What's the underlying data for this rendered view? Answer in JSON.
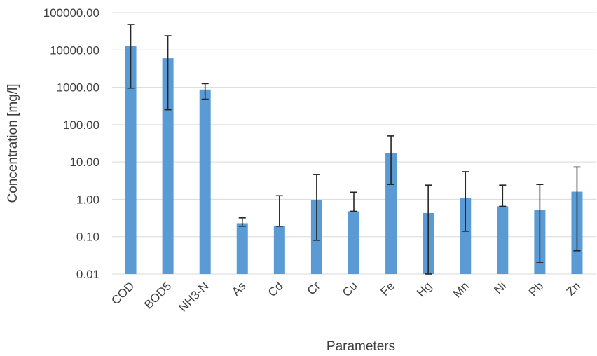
{
  "chart_data": {
    "type": "bar",
    "yscale": "log",
    "ylim": [
      0.01,
      100000
    ],
    "xlabel": "Parameters",
    "ylabel": "Concentration [mg/l]",
    "yticks": [
      "0.01",
      "0.10",
      "1.00",
      "10.00",
      "100.00",
      "1000.00",
      "10000.00",
      "100000.00"
    ],
    "yticks_values": [
      0.01,
      0.1,
      1,
      10,
      100,
      1000,
      10000,
      100000
    ],
    "grid": true,
    "legend": "none",
    "categories": [
      "COD",
      "BOD5",
      "NH3-N",
      "As",
      "Cd",
      "Cr",
      "Cu",
      "Fe",
      "Hg",
      "Mn",
      "Ni",
      "Pb",
      "Zn"
    ],
    "values": [
      13000,
      6000,
      870,
      0.23,
      0.19,
      0.95,
      0.48,
      17,
      0.43,
      1.1,
      0.65,
      0.52,
      1.6
    ],
    "error_low": [
      950,
      250,
      480,
      0.19,
      0.19,
      0.08,
      0.48,
      2.5,
      0.01,
      0.14,
      0.65,
      0.02,
      0.042
    ],
    "error_high": [
      48000,
      24000,
      1250,
      0.32,
      1.25,
      4.6,
      1.55,
      50,
      2.4,
      5.5,
      2.4,
      2.5,
      7.3
    ],
    "bar_color": "#5b9bd5",
    "error_color": "#262626"
  }
}
